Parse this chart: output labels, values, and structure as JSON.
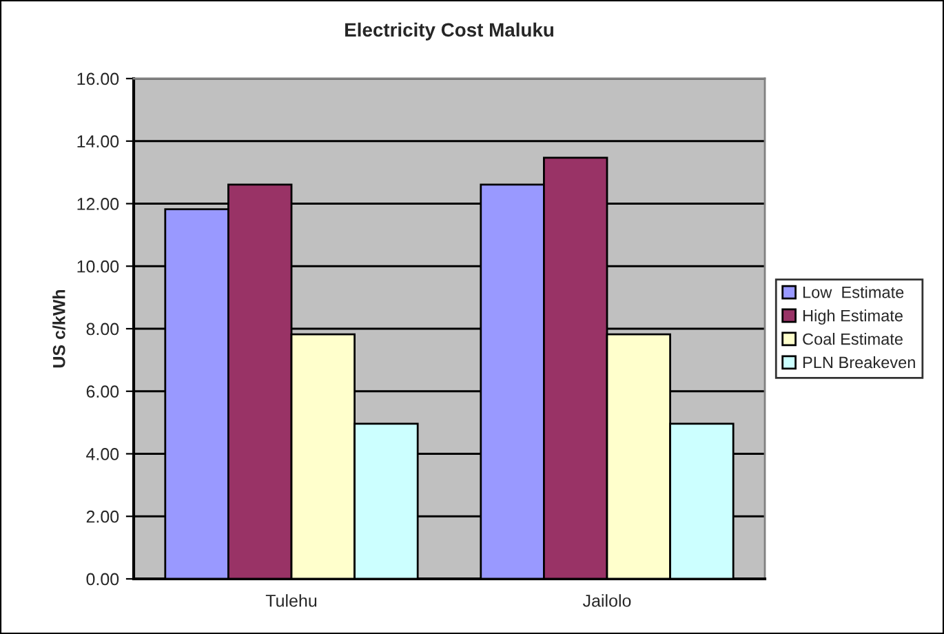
{
  "chart_data": {
    "type": "bar",
    "title": "Electricity Cost Maluku",
    "ylabel": "US c/kWh",
    "categories": [
      "Tulehu",
      "Jailolo"
    ],
    "series": [
      {
        "name": "Low  Estimate",
        "color": "#9999ff",
        "values": [
          11.82,
          12.61
        ]
      },
      {
        "name": "High Estimate",
        "color": "#993366",
        "values": [
          12.61,
          13.47
        ]
      },
      {
        "name": "Coal Estimate",
        "color": "#ffffcc",
        "values": [
          7.82,
          7.82
        ]
      },
      {
        "name": "PLN Breakeven",
        "color": "#ccffff",
        "values": [
          4.96,
          4.96
        ]
      }
    ],
    "ylim": [
      0,
      16
    ],
    "yticks": [
      {
        "value": 0,
        "label": "0.00"
      },
      {
        "value": 2,
        "label": "2.00"
      },
      {
        "value": 4,
        "label": "4.00"
      },
      {
        "value": 6,
        "label": "6.00"
      },
      {
        "value": 8,
        "label": "8.00"
      },
      {
        "value": 10,
        "label": "10.00"
      },
      {
        "value": 12,
        "label": "12.00"
      },
      {
        "value": 14,
        "label": "14.00"
      },
      {
        "value": 16,
        "label": "16.00"
      }
    ],
    "grid": "y",
    "legend": "right"
  }
}
